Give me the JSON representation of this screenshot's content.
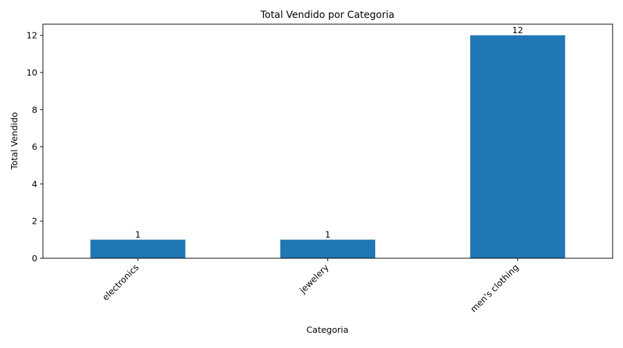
{
  "chart_data": {
    "type": "bar",
    "title": "Total Vendido por Categoria",
    "xlabel": "Categoria",
    "ylabel": "Total Vendido",
    "categories": [
      "electronics",
      "jewelery",
      "men's clothing"
    ],
    "values": [
      1,
      1,
      12
    ],
    "data_labels": [
      "1",
      "1",
      "12"
    ],
    "ylim": [
      0,
      12.6
    ],
    "yticks": [
      0,
      2,
      4,
      6,
      8,
      10,
      12
    ],
    "grid": false,
    "legend": "none",
    "bar_color": "#1f77b4"
  }
}
